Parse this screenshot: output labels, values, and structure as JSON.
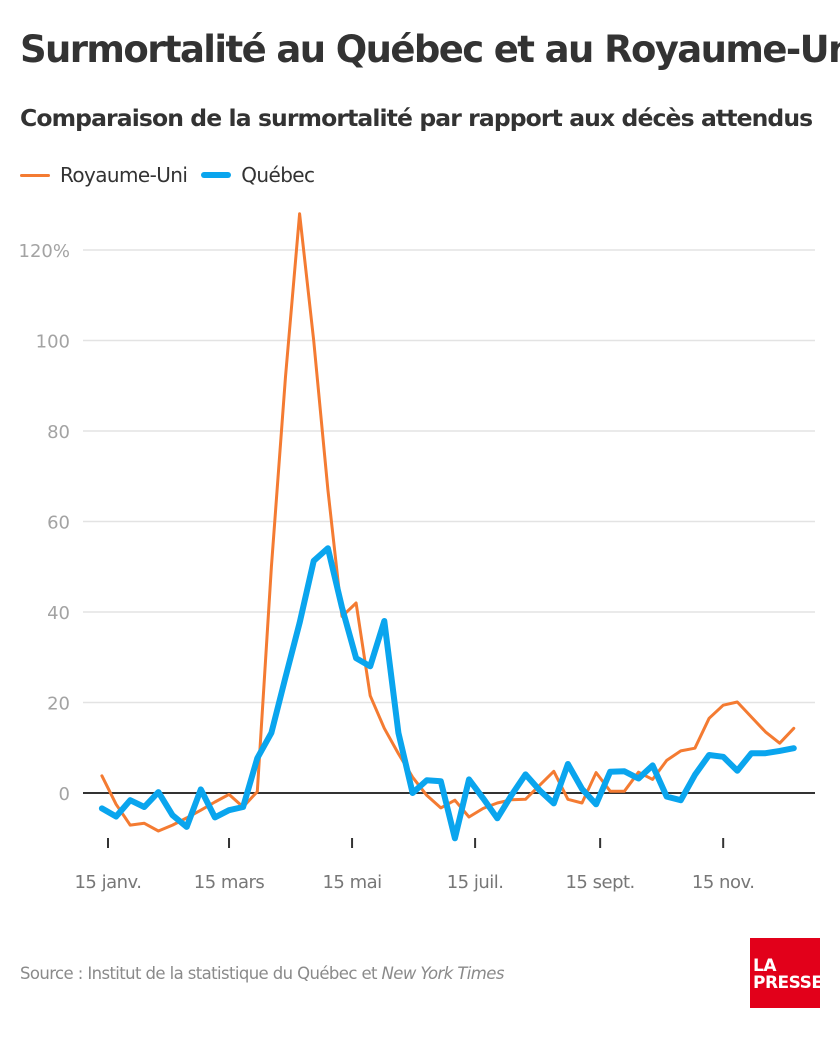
{
  "header": {
    "title": "Surmortalité au Québec et au Royaume-Uni",
    "subtitle": "Comparaison de la surmortalité par rapport aux décès attendus"
  },
  "footer": {
    "source_prefix": "Source : Institut de la statistique du Québec et ",
    "source_italic": "New York Times",
    "logo_line1": "LA",
    "logo_line2": "PRESSE",
    "logo_color": "#e2001a"
  },
  "chart_data": {
    "type": "line",
    "title": "Surmortalité au Québec et au Royaume-Uni",
    "subtitle": "Comparaison de la surmortalité par rapport aux décès attendus",
    "xlabel": "",
    "ylabel": "",
    "x_unit": "day of year 2020 (weekly points)",
    "xlim": [
      1,
      366
    ],
    "ylim": [
      -12,
      130
    ],
    "grid": true,
    "legend_position": "top-left",
    "y_ticks": [
      0,
      20,
      40,
      60,
      80,
      100,
      120
    ],
    "y_tick_labels": [
      "0",
      "20",
      "40",
      "60",
      "80",
      "100",
      "120%"
    ],
    "x_ticks": [
      15,
      75,
      136,
      197,
      259,
      320
    ],
    "x_tick_labels": [
      "15 janv.",
      "15 mars",
      "15 mai",
      "15 juil.",
      "15 sept.",
      "15 nov."
    ],
    "x": [
      12,
      19,
      26,
      33,
      40,
      47,
      54,
      61,
      68,
      75,
      82,
      89,
      96,
      103,
      110,
      117,
      124,
      131,
      138,
      145,
      152,
      159,
      166,
      173,
      180,
      187,
      194,
      201,
      208,
      215,
      222,
      229,
      236,
      243,
      250,
      257,
      264,
      271,
      278,
      285,
      292,
      299,
      306,
      313,
      320,
      327,
      334,
      341,
      348,
      355
    ],
    "series": [
      {
        "name": "Royaume-Uni",
        "color": "#f47b32",
        "values": [
          3.8,
          -2.5,
          -7.1,
          -6.7,
          -8.4,
          -7.1,
          -5.5,
          -3.8,
          -2.0,
          -0.3,
          -3.1,
          0.3,
          50,
          92,
          128,
          100,
          67,
          39,
          42,
          21.5,
          14.3,
          8.7,
          3.5,
          -0.5,
          -3.3,
          -1.6,
          -5.3,
          -3.4,
          -2.2,
          -1.5,
          -1.4,
          1.7,
          4.8,
          -1.4,
          -2.2,
          4.5,
          0.4,
          0.4,
          4.6,
          3.0,
          7.2,
          9.3,
          9.9,
          16.5,
          19.4,
          20.1,
          16.8,
          13.5,
          11.0,
          14.3
        ]
      },
      {
        "name": "Québec",
        "color": "#0aa5ee",
        "values": [
          -3.4,
          -5.2,
          -1.6,
          -3.1,
          0.2,
          -4.9,
          -7.5,
          0.8,
          -5.4,
          -3.8,
          -3.1,
          7.7,
          13.3,
          25.6,
          37.6,
          51.3,
          54.1,
          41,
          29.8,
          28.0,
          38.0,
          13.3,
          0,
          2.8,
          2.6,
          -10,
          3.0,
          -1.2,
          -5.6,
          -0.5,
          4.1,
          0.6,
          -2.3,
          6.4,
          0.9,
          -2.5,
          4.7,
          4.8,
          3.2,
          6.1,
          -0.8,
          -1.6,
          4.0,
          8.4,
          8.0,
          4.9,
          8.8,
          8.8,
          9.3,
          9.9
        ]
      }
    ]
  }
}
